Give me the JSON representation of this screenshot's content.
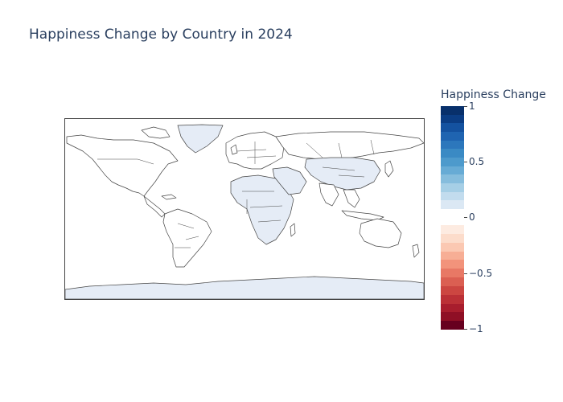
{
  "title": "Happiness Change by Country in 2024",
  "colorbar": {
    "title": "Happiness Change",
    "range": [
      -1,
      1
    ],
    "positive": {
      "tick_values": [
        1,
        0.5
      ],
      "tick_labels": [
        "1",
        "0.5"
      ],
      "colors": [
        "#08306b",
        "#0b3d84",
        "#1452a0",
        "#1f64b1",
        "#2c77bc",
        "#3a8ac4",
        "#4d9acc",
        "#67abd5",
        "#86bddd",
        "#a6cfe6",
        "#c2dcee",
        "#dbe8f4"
      ]
    },
    "negative": {
      "tick_values": [
        0,
        -0.5,
        -1
      ],
      "tick_labels": [
        "0",
        "−0.5",
        "−1"
      ],
      "colors": [
        "#fdebe1",
        "#fcdccb",
        "#fbc8b2",
        "#f7ae95",
        "#f2937b",
        "#e87865",
        "#db5f52",
        "#cc4641",
        "#bb3036",
        "#a81d2d",
        "#8f0f25",
        "#67001f"
      ]
    }
  },
  "map": {
    "fill_color": "#e5ecf6",
    "border_color": "#444444",
    "land_background": "#ffffff"
  },
  "chart_data": {
    "type": "choropleth",
    "title": "Happiness Change by Country in 2024",
    "colorbar_title": "Happiness Change",
    "color_range": [
      -1,
      1
    ],
    "colorscale": "RdBu",
    "values_note": "",
    "series": []
  }
}
